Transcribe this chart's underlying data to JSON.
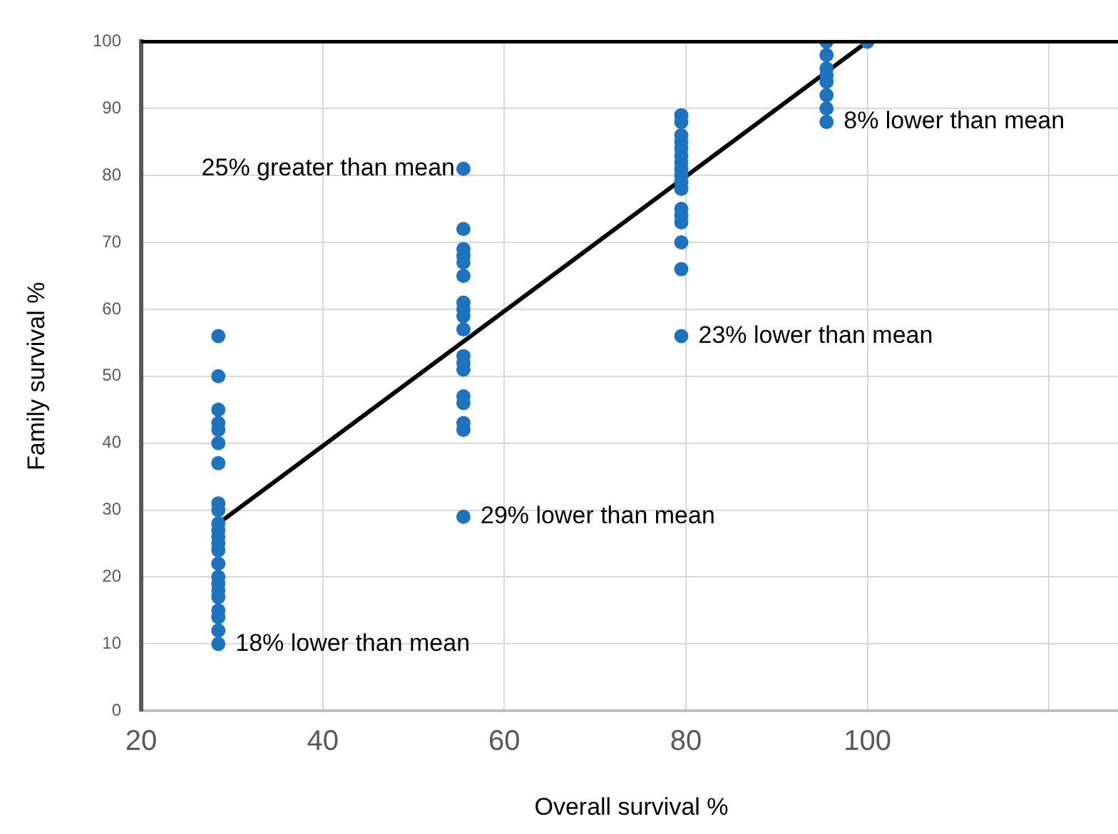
{
  "chart_data": {
    "type": "scatter",
    "xlabel": "Overall survival %",
    "ylabel": "Family survival %",
    "xlim": [
      20,
      128
    ],
    "xticks": [
      20,
      40,
      60,
      80,
      100,
      {
        "value": 120,
        "label": null
      }
    ],
    "ylim": [
      0,
      100
    ],
    "yticks": [
      0,
      10,
      20,
      30,
      40,
      50,
      60,
      70,
      80,
      90,
      100
    ],
    "grid": true,
    "legend": false,
    "marker": "circle",
    "series": [
      {
        "color": "#1e73be",
        "x": [
          28.5,
          28.5,
          28.5,
          28.5,
          28.5,
          28.5,
          28.5,
          28.5,
          28.5,
          28.5,
          28.5,
          28.5,
          28.5,
          28.5,
          28.5,
          28.5,
          28.5,
          28.5,
          28.5,
          28.5,
          28.5,
          28.5,
          28.5
        ],
        "values": [
          56,
          50,
          45,
          43,
          42,
          40,
          37,
          31,
          30,
          28,
          27,
          26,
          25,
          24,
          22,
          20,
          19,
          18,
          17,
          15,
          14,
          12,
          10
        ]
      },
      {
        "color": "#1e73be",
        "x": [
          55.5,
          55.5,
          55.5,
          55.5,
          55.5,
          55.5,
          55.5,
          55.5,
          55.5,
          55.5,
          55.5,
          55.5,
          55.5,
          55.5,
          55.5,
          55.5,
          55.5,
          55.5
        ],
        "values": [
          81,
          72,
          69,
          68,
          67,
          65,
          61,
          60,
          59,
          57,
          53,
          52,
          51,
          47,
          46,
          43,
          42,
          29
        ]
      },
      {
        "color": "#1e73be",
        "x": [
          79.5,
          79.5,
          79.5,
          79.5,
          79.5,
          79.5,
          79.5,
          79.5,
          79.5,
          79.5,
          79.5,
          79.5,
          79.5,
          79.5,
          79.5,
          79.5,
          79.5
        ],
        "values": [
          89,
          88,
          86,
          85,
          84,
          83,
          82,
          81,
          80,
          79,
          78,
          75,
          74,
          73,
          70,
          66,
          56
        ]
      },
      {
        "color": "#1e73be",
        "x": [
          95.5,
          95.5,
          95.5,
          95.5,
          95.5,
          95.5,
          95.5,
          95.5,
          100
        ],
        "values": [
          100,
          98,
          96,
          95,
          94,
          92,
          90,
          88,
          100
        ]
      },
      {
        "type": "line",
        "marker": "none",
        "color": "#000000",
        "x": [
          28.5,
          100
        ],
        "values": [
          28,
          100
        ]
      }
    ],
    "ref_lines": [
      {
        "axis": "y",
        "value": 100,
        "color": "#000000"
      }
    ],
    "annotations": [
      {
        "text": "25% greater than mean",
        "x": 55.5,
        "y": 81
      },
      {
        "text": "8% lower than mean",
        "x": 95.5,
        "y": 88
      },
      {
        "text": "23% lower than mean",
        "x": 79.5,
        "y": 56
      },
      {
        "text": "29% lower than mean",
        "x": 55.5,
        "y": 29
      },
      {
        "text": "18% lower than mean",
        "x": 28.5,
        "y": 10
      }
    ]
  }
}
